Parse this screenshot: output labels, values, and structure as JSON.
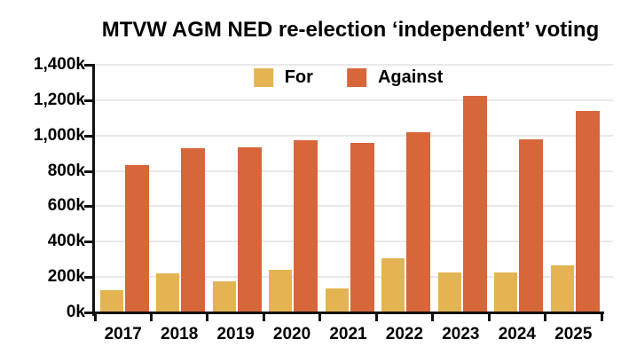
{
  "title": "MTVW AGM NED re-election ‘independent’ voting",
  "chart_data": {
    "type": "bar",
    "title": "MTVW AGM NED re-election ‘independent’ voting",
    "categories": [
      "2017",
      "2018",
      "2019",
      "2020",
      "2021",
      "2022",
      "2023",
      "2024",
      "2025"
    ],
    "series": [
      {
        "name": "For",
        "color": "#E4B452",
        "values_thousands": [
          125,
          220,
          175,
          240,
          135,
          305,
          225,
          225,
          265
        ]
      },
      {
        "name": "Against",
        "color": "#D7663A",
        "values_thousands": [
          835,
          930,
          935,
          975,
          960,
          1020,
          1225,
          980,
          1140
        ]
      }
    ],
    "y_axis": {
      "min_thousands": 0,
      "max_thousands": 1400,
      "step_thousands": 200,
      "tick_labels": [
        "0k",
        "200k",
        "400k",
        "600k",
        "800k",
        "1,000k",
        "1,200k",
        "1,400k"
      ]
    },
    "x_axis": {
      "tick_labels": [
        "2017",
        "2018",
        "2019",
        "2020",
        "2021",
        "2022",
        "2023",
        "2024",
        "2025"
      ]
    },
    "legend": {
      "position": "top-center",
      "entries": [
        "For",
        "Against"
      ]
    },
    "grid": "horizontal",
    "colors": {
      "grid": "#E9E9E9",
      "axis": "#111111",
      "text": "#000000",
      "background": "#FFFFFF"
    }
  }
}
